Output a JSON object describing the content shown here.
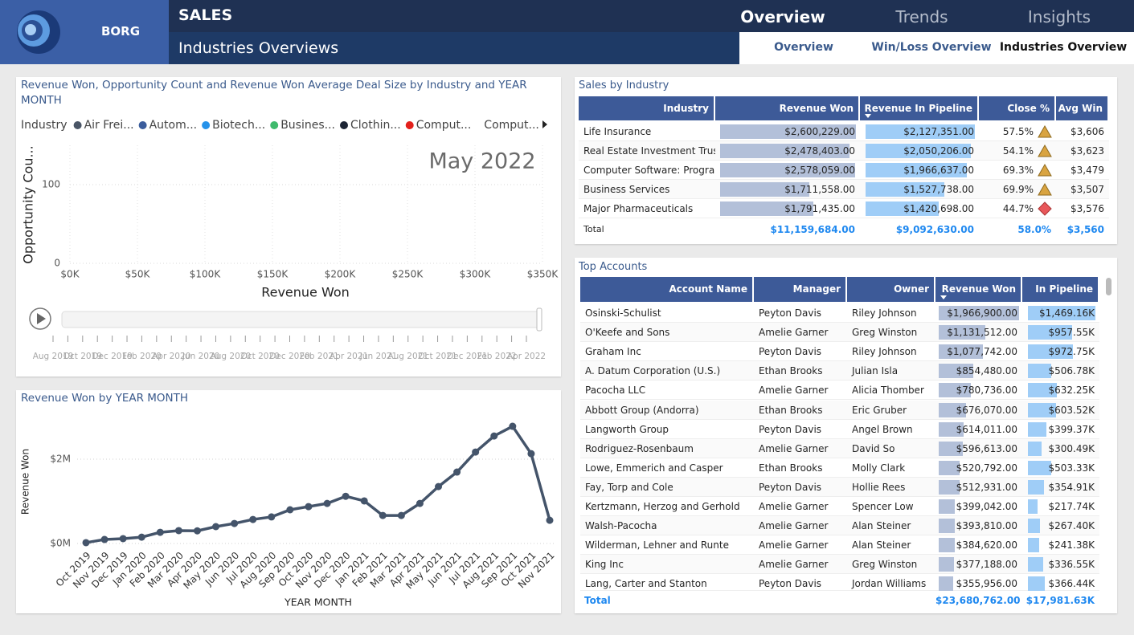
{
  "header": {
    "brand": "BORG",
    "title": "SALES",
    "subtitle": "Industries Overviews",
    "tabs": [
      "Overview",
      "Trends",
      "Insights"
    ],
    "subtabs": [
      "Overview",
      "Win/Loss Overview",
      "Industries Overview"
    ]
  },
  "chart_data": [
    {
      "type": "scatter",
      "title": "Revenue Won, Opportunity Count and Revenue Won Average Deal Size by Industry and YEAR MONTH",
      "legend_title": "Industry",
      "series": [
        {
          "name": "Air Frei...",
          "color": "#4a5566"
        },
        {
          "name": "Autom...",
          "color": "#3b5d9c"
        },
        {
          "name": "Biotech...",
          "color": "#2592ea"
        },
        {
          "name": "Busines...",
          "color": "#3fba6c"
        },
        {
          "name": "Clothin...",
          "color": "#1c2434"
        },
        {
          "name": "Comput...",
          "color": "#e3211c"
        },
        {
          "name": "Comput..."
        }
      ],
      "frame_label": "May 2022",
      "xlabel": "Revenue Won",
      "ylabel": "Opportunity Cou...",
      "xlim": [
        0,
        350000
      ],
      "xticks": [
        {
          "value": 0,
          "label": "$0K"
        },
        {
          "value": 50000,
          "label": "$50K"
        },
        {
          "value": 100000,
          "label": "$100K"
        },
        {
          "value": 150000,
          "label": "$150K"
        },
        {
          "value": 200000,
          "label": "$200K"
        },
        {
          "value": 250000,
          "label": "$250K"
        },
        {
          "value": 300000,
          "label": "$300K"
        },
        {
          "value": 350000,
          "label": "$350K"
        }
      ],
      "ylim": [
        0,
        150
      ],
      "yticks": [
        0,
        100
      ],
      "grid": true,
      "play_axis": [
        "Aug 2019",
        "Oct 2019",
        "Dec 2019",
        "Feb 2020",
        "Apr 2020",
        "Jun 2020",
        "Aug 2020",
        "Oct 2020",
        "Dec 2020",
        "Feb 2021",
        "Apr 2021",
        "Jun 2021",
        "Aug 2021",
        "Oct 2021",
        "Dec 2021",
        "Feb 2022",
        "Apr 2022"
      ]
    },
    {
      "type": "line",
      "title": "Revenue Won by YEAR MONTH",
      "xlabel": "YEAR MONTH",
      "ylabel": "Revenue Won",
      "color": "#44546a",
      "categories": [
        "Oct 2019",
        "Nov 2019",
        "Dec 2019",
        "Jan 2020",
        "Feb 2020",
        "Mar 2020",
        "Apr 2020",
        "May 2020",
        "Jun 2020",
        "Jul 2020",
        "Aug 2020",
        "Sep 2020",
        "Oct 2020",
        "Nov 2020",
        "Dec 2020",
        "Jan 2021",
        "Feb 2021",
        "Mar 2021",
        "Apr 2021",
        "May 2021",
        "Jun 2021",
        "Jul 2021",
        "Aug 2021",
        "Sep 2021",
        "Oct 2021",
        "Nov 2021"
      ],
      "values": [
        20000,
        95000,
        115000,
        150000,
        265000,
        305000,
        300000,
        400000,
        475000,
        570000,
        630000,
        800000,
        875000,
        950000,
        1120000,
        1010000,
        665000,
        665000,
        950000,
        1350000,
        1695000,
        2170000,
        2550000,
        2780000,
        2130000,
        550000
      ],
      "ylim": [
        -100000,
        3200000
      ],
      "yticks": [
        {
          "value": 0,
          "label": "$0M"
        },
        {
          "value": 2000000,
          "label": "$2M"
        }
      ],
      "grid": true
    }
  ],
  "sales_table": {
    "title": "Sales by Industry",
    "columns": [
      "Industry",
      "Revenue Won",
      "Revenue In Pipeline",
      "Close %",
      "Avg Win"
    ],
    "rows": [
      [
        "Life Insurance",
        "$2,600,229.00",
        "$2,127,351.00",
        "57.5%",
        "$3,606"
      ],
      [
        "Real Estate Investment Trusts",
        "$2,478,403.00",
        "$2,050,206.00",
        "54.1%",
        "$3,623"
      ],
      [
        "Computer Software: Progra...",
        "$2,578,059.00",
        "$1,966,637.00",
        "69.3%",
        "$3,479"
      ],
      [
        "Business Services",
        "$1,711,558.00",
        "$1,527,738.00",
        "69.9%",
        "$3,507"
      ],
      [
        "Major Pharmaceuticals",
        "$1,791,435.00",
        "$1,420,698.00",
        "44.7%",
        "$3,576"
      ]
    ],
    "total": [
      "Total",
      "$11,159,684.00",
      "$9,092,630.00",
      "58.0%",
      "$3,560"
    ]
  },
  "accounts_table": {
    "title": "Top Accounts",
    "columns": [
      "Account Name",
      "Manager",
      "Owner",
      "Revenue Won",
      "In Pipeline"
    ],
    "rows": [
      [
        "Osinski-Schulist",
        "Peyton Davis",
        "Riley Johnson",
        "$1,966,900.00",
        "$1,469.16K"
      ],
      [
        "O'Keefe and Sons",
        "Amelie Garner",
        "Greg Winston",
        "$1,131,512.00",
        "$957.55K"
      ],
      [
        "Graham Inc",
        "Peyton Davis",
        "Riley Johnson",
        "$1,077,742.00",
        "$972.75K"
      ],
      [
        "A. Datum Corporation (U.S.)",
        "Ethan Brooks",
        "Julian Isla",
        "$854,480.00",
        "$506.78K"
      ],
      [
        "Pacocha LLC",
        "Amelie Garner",
        "Alicia Thomber",
        "$780,736.00",
        "$632.25K"
      ],
      [
        "Abbott Group (Andorra)",
        "Ethan Brooks",
        "Eric Gruber",
        "$676,070.00",
        "$603.52K"
      ],
      [
        "Langworth Group",
        "Peyton Davis",
        "Angel Brown",
        "$614,011.00",
        "$399.37K"
      ],
      [
        "Rodriguez-Rosenbaum",
        "Amelie Garner",
        "David So",
        "$596,613.00",
        "$300.49K"
      ],
      [
        "Lowe, Emmerich and Casper",
        "Ethan Brooks",
        "Molly Clark",
        "$520,792.00",
        "$503.33K"
      ],
      [
        "Fay, Torp and Cole",
        "Peyton Davis",
        "Hollie Rees",
        "$512,931.00",
        "$354.91K"
      ],
      [
        "Kertzmann, Herzog and Gerhold",
        "Amelie Garner",
        "Spencer Low",
        "$399,042.00",
        "$217.74K"
      ],
      [
        "Walsh-Pacocha",
        "Amelie Garner",
        "Alan Steiner",
        "$393,810.00",
        "$267.40K"
      ],
      [
        "Wilderman, Lehner and Runte",
        "Amelie Garner",
        "Alan Steiner",
        "$384,620.00",
        "$241.38K"
      ],
      [
        "King Inc",
        "Amelie Garner",
        "Greg Winston",
        "$377,188.00",
        "$336.55K"
      ],
      [
        "Lang, Carter and Stanton",
        "Peyton Davis",
        "Jordan Williams",
        "$355,956.00",
        "$366.44K"
      ]
    ],
    "total": {
      "label": "Total",
      "revenue_won": "$23,680,762.00",
      "in_pipeline": "$17,981.63K"
    }
  }
}
